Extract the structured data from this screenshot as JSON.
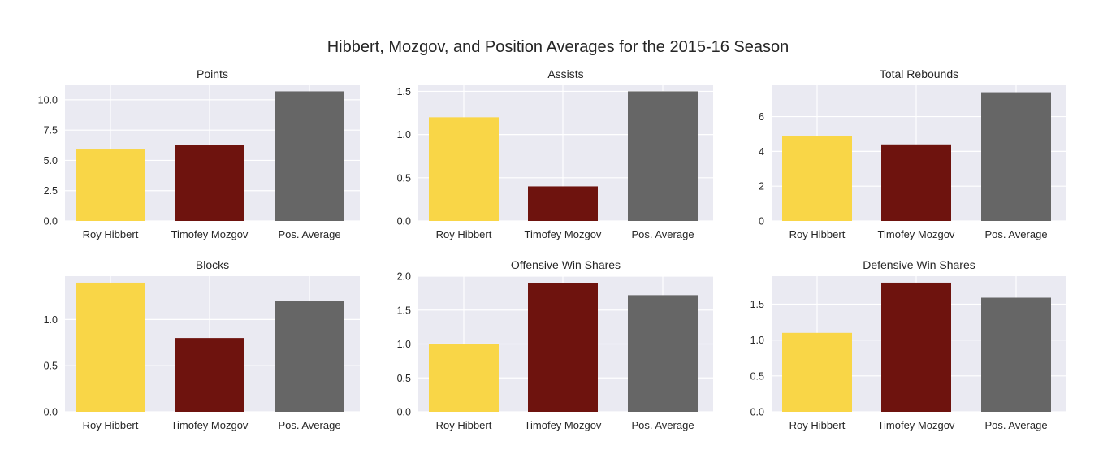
{
  "title": "Hibbert, Mozgov, and Position Averages for the 2015-16 Season",
  "colors": {
    "Roy Hibbert": "#f9d647",
    "Timofey Mozgov": "#6e130e",
    "Pos. Average": "#666666",
    "background": "#eaeaf2",
    "grid": "#ffffff"
  },
  "chart_data": [
    {
      "type": "bar",
      "title": "Points",
      "categories": [
        "Roy Hibbert",
        "Timofey Mozgov",
        "Pos. Average"
      ],
      "values": [
        5.9,
        6.3,
        10.7
      ],
      "ylim": [
        0,
        11.2
      ],
      "yticks": [
        0,
        2.5,
        5,
        7.5,
        10
      ],
      "ytick_labels": [
        "0.0",
        "2.5",
        "5.0",
        "7.5",
        "10.0"
      ]
    },
    {
      "type": "bar",
      "title": "Assists",
      "categories": [
        "Roy Hibbert",
        "Timofey Mozgov",
        "Pos. Average"
      ],
      "values": [
        1.2,
        0.4,
        1.5
      ],
      "ylim": [
        0,
        1.57
      ],
      "yticks": [
        0,
        0.5,
        1,
        1.5
      ],
      "ytick_labels": [
        "0.0",
        "0.5",
        "1.0",
        "1.5"
      ]
    },
    {
      "type": "bar",
      "title": "Total Rebounds",
      "categories": [
        "Roy Hibbert",
        "Timofey Mozgov",
        "Pos. Average"
      ],
      "values": [
        4.9,
        4.4,
        7.4
      ],
      "ylim": [
        0,
        7.8
      ],
      "yticks": [
        0,
        2,
        4,
        6
      ],
      "ytick_labels": [
        "0",
        "2",
        "4",
        "6"
      ]
    },
    {
      "type": "bar",
      "title": "Blocks",
      "categories": [
        "Roy Hibbert",
        "Timofey Mozgov",
        "Pos. Average"
      ],
      "values": [
        1.4,
        0.8,
        1.2
      ],
      "ylim": [
        0,
        1.47
      ],
      "yticks": [
        0,
        0.5,
        1
      ],
      "ytick_labels": [
        "0.0",
        "0.5",
        "1.0"
      ]
    },
    {
      "type": "bar",
      "title": "Offensive Win Shares",
      "categories": [
        "Roy Hibbert",
        "Timofey Mozgov",
        "Pos. Average"
      ],
      "values": [
        1.0,
        1.9,
        1.72
      ],
      "ylim": [
        0,
        2.0
      ],
      "yticks": [
        0,
        0.5,
        1,
        1.5,
        2
      ],
      "ytick_labels": [
        "0.0",
        "0.5",
        "1.0",
        "1.5",
        "2.0"
      ]
    },
    {
      "type": "bar",
      "title": "Defensive Win Shares",
      "categories": [
        "Roy Hibbert",
        "Timofey Mozgov",
        "Pos. Average"
      ],
      "values": [
        1.1,
        1.8,
        1.59
      ],
      "ylim": [
        0,
        1.89
      ],
      "yticks": [
        0,
        0.5,
        1,
        1.5
      ],
      "ytick_labels": [
        "0.0",
        "0.5",
        "1.0",
        "1.5"
      ]
    }
  ]
}
